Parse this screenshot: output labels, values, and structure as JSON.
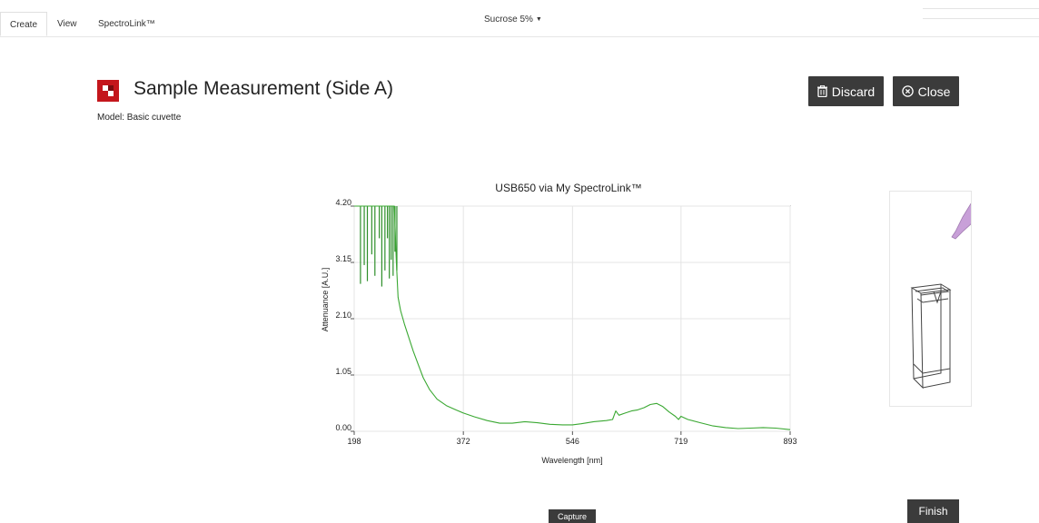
{
  "tabs": [
    {
      "label": "Create",
      "active": true
    },
    {
      "label": "View",
      "active": false
    },
    {
      "label": "SpectroLink™",
      "active": false
    }
  ],
  "sample_selector": {
    "value": "Sucrose 5%"
  },
  "header": {
    "title": "Sample Measurement (Side A)",
    "model": "Model: Basic cuvette"
  },
  "actions": {
    "discard_label": "Discard",
    "close_label": "Close",
    "capture_label": "Capture",
    "finish_label": "Finish"
  },
  "colors": {
    "accent_dark": "#3b3b3b",
    "brand_red": "#c4161c",
    "trace_green": "#3aa832"
  },
  "icons": {
    "discard": "trash-icon",
    "close": "circle-x-icon",
    "logo": "app-logo-icon",
    "cuvette": "cuvette-icon",
    "pipette": "pipette-icon"
  },
  "chart_data": {
    "type": "line",
    "title": "USB650 via My SpectroLink™",
    "xlabel": "Wavelength [nm]",
    "ylabel": "Attenuance [A.U.]",
    "xlim": [
      198,
      893
    ],
    "ylim": [
      0.0,
      4.2
    ],
    "x_ticks": [
      "198",
      "372",
      "546",
      "719",
      "893"
    ],
    "y_ticks": [
      "0.00",
      "1.05",
      "2.10",
      "3.15",
      "4.20"
    ],
    "grid": true,
    "series": [
      {
        "color": "#3aa832",
        "x": [
          198,
          205,
          215,
          225,
          235,
          245,
          255,
          262,
          265,
          268,
          272,
          278,
          285,
          292,
          300,
          308,
          318,
          330,
          345,
          360,
          372,
          390,
          410,
          430,
          450,
          470,
          490,
          510,
          530,
          546,
          560,
          580,
          600,
          610,
          615,
          620,
          630,
          640,
          650,
          660,
          670,
          680,
          690,
          700,
          710,
          715,
          719,
          730,
          750,
          770,
          790,
          810,
          830,
          850,
          870,
          893
        ],
        "y": [
          4.2,
          4.2,
          4.2,
          4.2,
          4.2,
          4.2,
          4.2,
          4.2,
          3.2,
          2.5,
          2.25,
          2.0,
          1.75,
          1.5,
          1.25,
          1.0,
          0.78,
          0.6,
          0.48,
          0.4,
          0.34,
          0.27,
          0.2,
          0.15,
          0.15,
          0.18,
          0.16,
          0.13,
          0.12,
          0.12,
          0.14,
          0.18,
          0.2,
          0.22,
          0.38,
          0.3,
          0.34,
          0.38,
          0.4,
          0.44,
          0.5,
          0.52,
          0.46,
          0.36,
          0.28,
          0.22,
          0.28,
          0.22,
          0.16,
          0.1,
          0.07,
          0.05,
          0.06,
          0.07,
          0.06,
          0.03
        ]
      }
    ],
    "noise_spikes": [
      {
        "x": 208,
        "y": 2.75
      },
      {
        "x": 214,
        "y": 3.1
      },
      {
        "x": 219,
        "y": 2.8
      },
      {
        "x": 226,
        "y": 3.3
      },
      {
        "x": 231,
        "y": 2.9
      },
      {
        "x": 238,
        "y": 3.6
      },
      {
        "x": 242,
        "y": 2.7
      },
      {
        "x": 247,
        "y": 3.0
      },
      {
        "x": 251,
        "y": 3.6
      },
      {
        "x": 254,
        "y": 2.85
      },
      {
        "x": 257,
        "y": 3.2
      },
      {
        "x": 260,
        "y": 2.9
      },
      {
        "x": 263,
        "y": 3.35
      },
      {
        "x": 266,
        "y": 3.0
      }
    ]
  }
}
